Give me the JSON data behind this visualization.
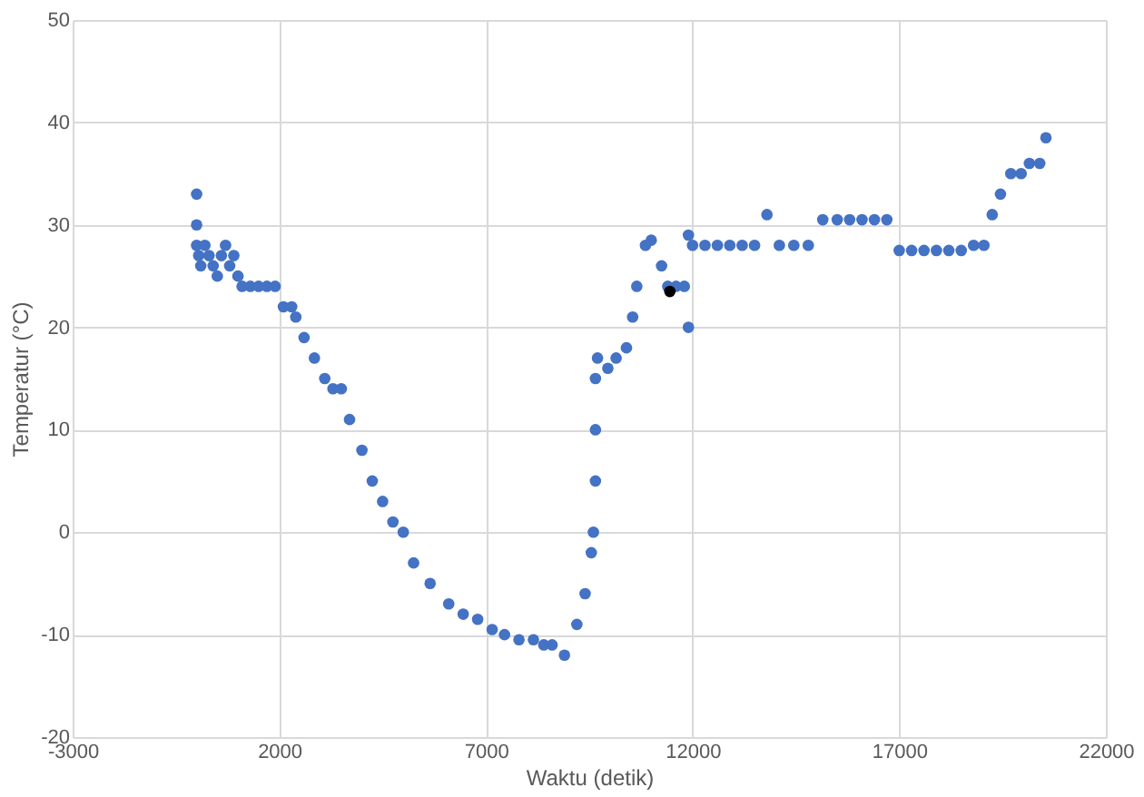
{
  "chart_data": {
    "type": "scatter",
    "xlabel": "Waktu (detik)",
    "ylabel": "Temperatur (°C)",
    "xlim": [
      -3000,
      22000
    ],
    "xticks": [
      -3000,
      2000,
      7000,
      12000,
      17000,
      22000
    ],
    "ylim": [
      -20,
      50
    ],
    "yticks": [
      -20,
      -10,
      0,
      10,
      20,
      30,
      40,
      50
    ],
    "grid": true,
    "marker": "circle",
    "legend": false,
    "series": [
      {
        "color": "#4472c4",
        "x": [
          0,
          0,
          0,
          50,
          100,
          200,
          300,
          400,
          500,
          600,
          700,
          800,
          900,
          1000,
          1100,
          1300,
          1500,
          1700,
          1900,
          2100,
          2300,
          2400,
          2600,
          2850,
          3100,
          3300,
          3500,
          3700,
          4000,
          4250,
          4500,
          4750,
          5000,
          5250,
          5650,
          6100,
          6450,
          6800,
          7150,
          7450,
          7800,
          8150,
          8400,
          8600,
          8900,
          9200,
          9400,
          9550,
          9600,
          9650,
          9650,
          9650,
          9700,
          9950,
          10150,
          10400,
          10550,
          10650,
          10860,
          11000,
          11250,
          11400,
          11600,
          11800,
          11900,
          11900,
          12000,
          12300,
          12600,
          12900,
          13200,
          13500,
          13800,
          14100,
          14450,
          14800,
          15150,
          15500,
          15800,
          16100,
          16400,
          16700,
          17000,
          17300,
          17600,
          17900,
          18200,
          18500,
          18800,
          19050,
          19250,
          19450,
          19700,
          19950,
          20150,
          20400,
          20550
        ],
        "values": [
          33,
          30,
          28,
          27,
          26,
          28,
          27,
          26,
          25,
          27,
          28,
          26,
          27,
          25,
          24,
          24,
          24,
          24,
          24,
          22,
          22,
          21,
          19,
          17,
          15,
          14,
          14,
          11,
          8,
          5,
          3,
          1,
          0,
          -3,
          -5,
          -7,
          -8,
          -8.5,
          -9.5,
          -10,
          -10.5,
          -10.5,
          -11,
          -11,
          -12,
          -9,
          -6,
          -2,
          0,
          5,
          10,
          15,
          17,
          16,
          17,
          18,
          21,
          24,
          28,
          28.5,
          26,
          24,
          24,
          24,
          20,
          29,
          28,
          28,
          28,
          28,
          28,
          28,
          31,
          28,
          28,
          28,
          30.5,
          30.5,
          30.5,
          30.5,
          30.5,
          30.5,
          27.5,
          27.5,
          27.5,
          27.5,
          27.5,
          27.5,
          28,
          28,
          31,
          33,
          35,
          35,
          36,
          36,
          38.5
        ]
      },
      {
        "color": "#000000",
        "x": [
          11450
        ],
        "values": [
          23.5
        ]
      }
    ]
  }
}
